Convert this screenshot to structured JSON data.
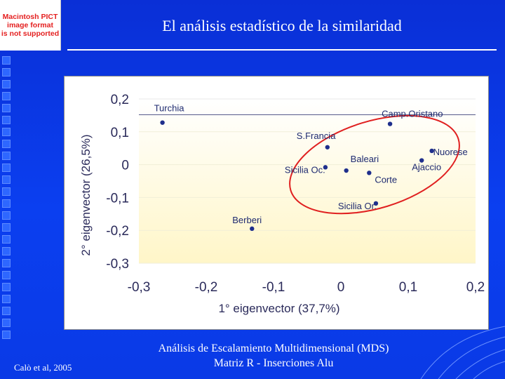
{
  "slide": {
    "title": "El análisis estadístico de la similaridad",
    "footer_left": "Calò et al, 2005",
    "caption_line1": "Análisis de Escalamiento Multidimensional (MDS)",
    "caption_line2": "Matriz R - Inserciones Alu",
    "pict_placeholder": [
      "Macintosh PICT",
      "image format",
      "is not supported"
    ]
  },
  "colors": {
    "background": "#0a33e6",
    "point": "#1f2f8c",
    "ellipse": "#e02020",
    "plot_band_top": "#ffffff",
    "plot_band_bottom": "#fff6c8"
  },
  "chart_data": {
    "type": "scatter",
    "title": "",
    "xlabel": "1° eigenvector (37,7%)",
    "ylabel": "2° eigenvector (26,5%)",
    "xlim": [
      -0.3,
      0.2
    ],
    "ylim": [
      -0.3,
      0.2
    ],
    "xticks": [
      -0.3,
      -0.2,
      -0.1,
      0,
      0.1,
      0.2
    ],
    "yticks": [
      0.2,
      0.1,
      0,
      -0.1,
      -0.2,
      -0.3
    ],
    "xtick_labels": [
      "-0,3",
      "-0,2",
      "-0,1",
      "0",
      "0,1",
      "0,2"
    ],
    "ytick_labels": [
      "0,2",
      "0,1",
      "0",
      "-0,1",
      "-0,2",
      "-0,3"
    ],
    "points": [
      {
        "label": "Turchia",
        "x": -0.265,
        "y": 0.128
      },
      {
        "label": "Camp.Oristano",
        "x": 0.073,
        "y": 0.124
      },
      {
        "label": "S.Francia",
        "x": -0.02,
        "y": 0.053
      },
      {
        "label": "Nuorese",
        "x": 0.135,
        "y": 0.042
      },
      {
        "label": "Baleari",
        "x": 0.008,
        "y": -0.018
      },
      {
        "label": "Sicilia Oc.",
        "x": -0.023,
        "y": -0.008
      },
      {
        "label": "Ajaccio",
        "x": 0.12,
        "y": 0.013
      },
      {
        "label": "Corte",
        "x": 0.042,
        "y": -0.025
      },
      {
        "label": "Sicilia Or.",
        "x": 0.052,
        "y": -0.118
      },
      {
        "label": "Berberi",
        "x": -0.132,
        "y": -0.195
      }
    ]
  }
}
